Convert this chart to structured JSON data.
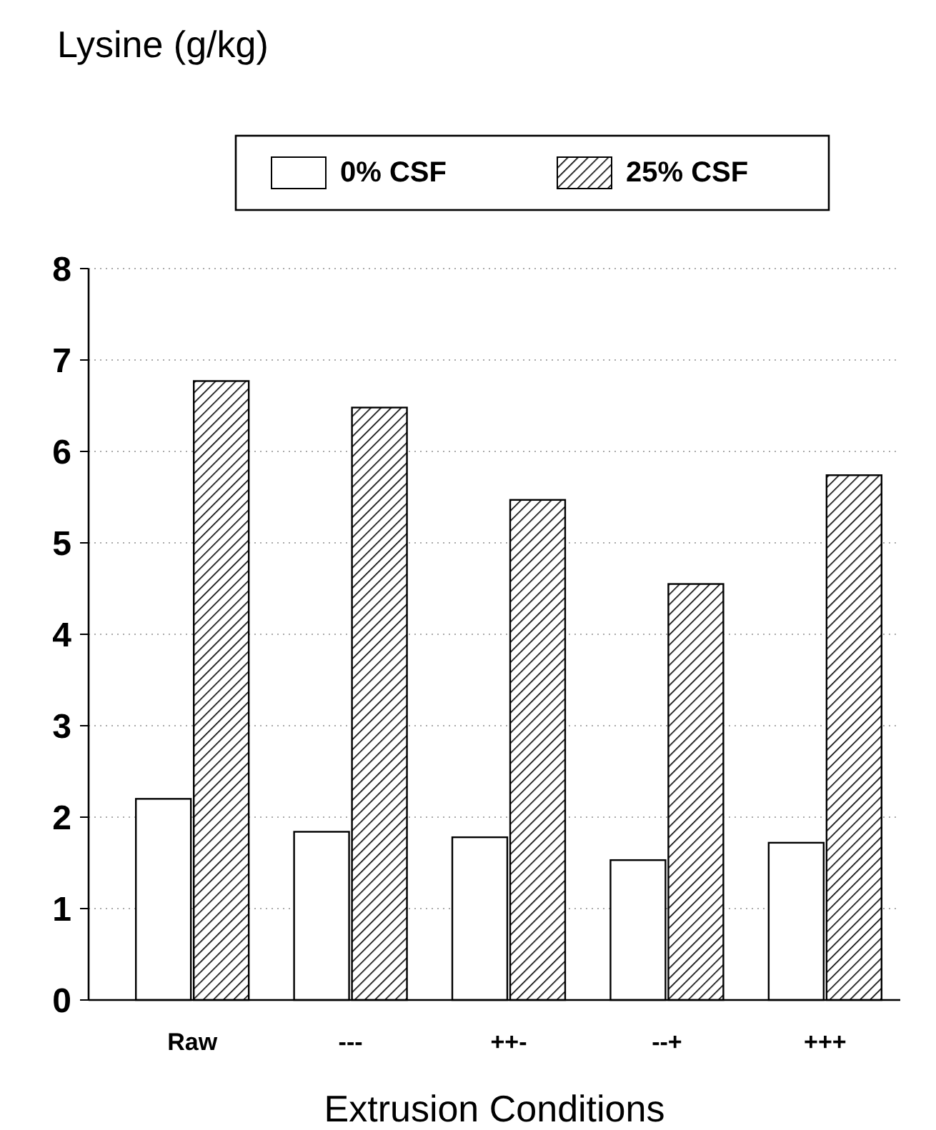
{
  "chart_data": {
    "type": "bar",
    "ylabel": "Lysine (g/kg)",
    "xlabel": "Extrusion Conditions",
    "categories": [
      "Raw",
      "---",
      "++-",
      "--+",
      "+++"
    ],
    "series": [
      {
        "name": "0% CSF",
        "color": "#ffffff",
        "values": [
          2.2,
          1.84,
          1.78,
          1.53,
          1.72
        ]
      },
      {
        "name": "25% CSF",
        "color": "#000000",
        "values": [
          6.77,
          6.48,
          5.47,
          4.55,
          5.74
        ]
      }
    ],
    "ylim": [
      0,
      8
    ],
    "yticks": [
      0,
      1,
      2,
      3,
      4,
      5,
      6,
      7,
      8
    ],
    "grid": "y",
    "legend": "top"
  }
}
